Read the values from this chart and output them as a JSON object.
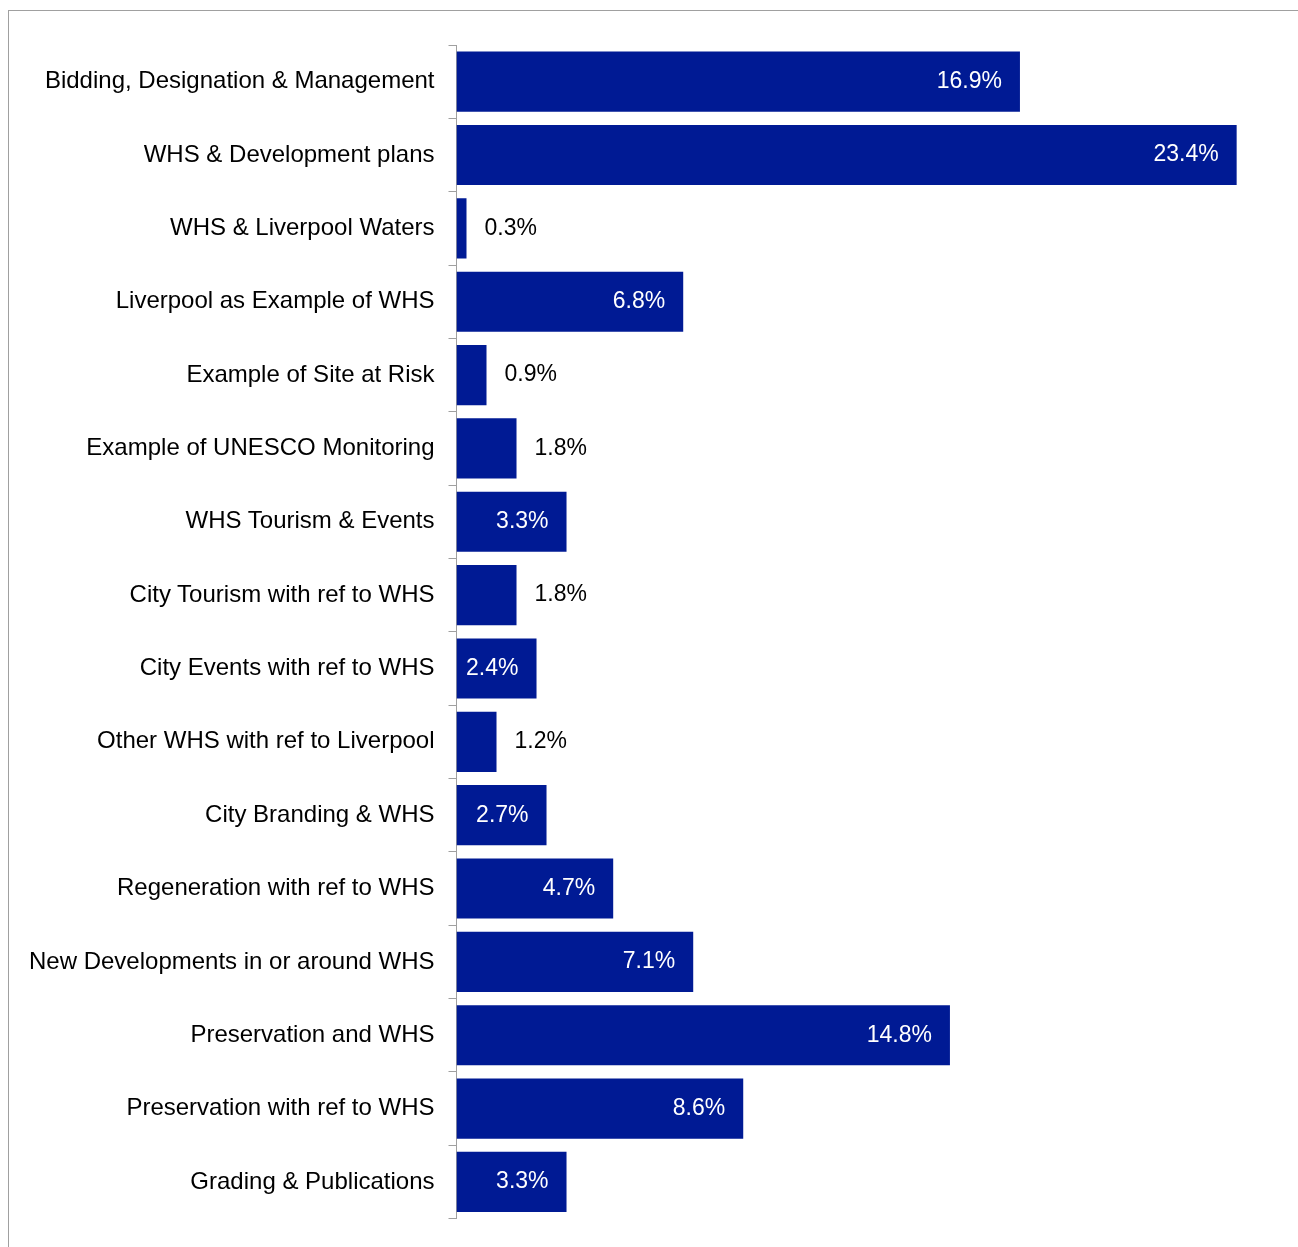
{
  "chart_data": {
    "type": "bar",
    "orientation": "horizontal",
    "categories": [
      "Bidding, Designation & Management",
      "WHS & Development plans",
      "WHS & Liverpool Waters",
      "Liverpool as Example of WHS",
      "Example of Site at Risk",
      "Example of UNESCO Monitoring",
      "WHS Tourism & Events",
      "City Tourism with ref to WHS",
      "City Events with ref to WHS",
      "Other WHS with ref to Liverpool",
      "City Branding & WHS",
      "Regeneration with ref to WHS",
      "New Developments in or around WHS",
      "Preservation and WHS",
      "Preservation with ref to WHS",
      "Grading & Publications"
    ],
    "values": [
      16.9,
      23.4,
      0.3,
      6.8,
      0.9,
      1.8,
      3.3,
      1.8,
      2.4,
      1.2,
      2.7,
      4.7,
      7.1,
      14.8,
      8.6,
      3.3
    ],
    "value_labels": [
      "16.9%",
      "23.4%",
      "0.3%",
      "6.8%",
      "0.9%",
      "1.8%",
      "3.3%",
      "1.8%",
      "2.4%",
      "1.2%",
      "2.7%",
      "4.7%",
      "7.1%",
      "14.8%",
      "8.6%",
      "3.3%"
    ],
    "color": "#001a94"
  }
}
